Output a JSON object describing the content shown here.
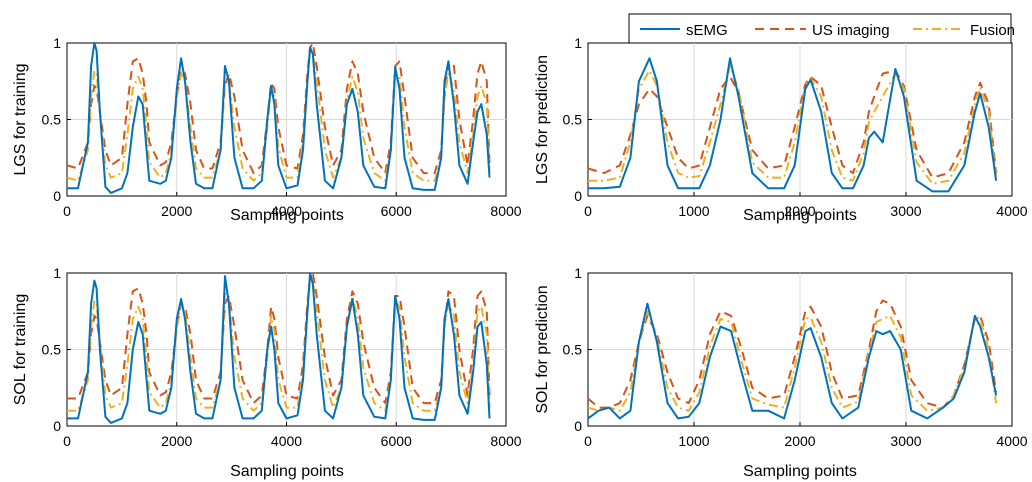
{
  "legend": {
    "entries": [
      {
        "name": "sEMG",
        "color": "#0072BD",
        "dash": "solid"
      },
      {
        "name": "US imaging",
        "color": "#D95319",
        "dash": "dashed"
      },
      {
        "name": "Fusion",
        "color": "#EDB120",
        "dash": "dashdot"
      }
    ],
    "placement": "top-right"
  },
  "chart_data": [
    {
      "type": "line",
      "xlabel": "Sampling points",
      "ylabel": "LGS for training",
      "xlim": [
        0,
        8000
      ],
      "ylim": [
        0,
        1
      ],
      "xticks": [
        0,
        2000,
        4000,
        6000,
        8000
      ],
      "yticks": [
        0,
        0.5,
        1
      ],
      "grid": true,
      "x": [
        0,
        200,
        380,
        440,
        500,
        540,
        600,
        700,
        800,
        1000,
        1100,
        1200,
        1300,
        1380,
        1450,
        1500,
        1700,
        1800,
        1900,
        2000,
        2080,
        2150,
        2250,
        2350,
        2500,
        2650,
        2800,
        2880,
        2950,
        3050,
        3200,
        3400,
        3550,
        3650,
        3720,
        3780,
        3850,
        4000,
        4200,
        4300,
        4380,
        4430,
        4480,
        4550,
        4700,
        4850,
        5000,
        5100,
        5200,
        5300,
        5400,
        5600,
        5800,
        5900,
        5980,
        6060,
        6150,
        6300,
        6500,
        6700,
        6820,
        6880,
        6950,
        7050,
        7150,
        7300,
        7400,
        7480,
        7550,
        7650,
        7700
      ],
      "series": [
        {
          "name": "sEMG",
          "values": [
            0.05,
            0.05,
            0.35,
            0.85,
            1.0,
            0.95,
            0.55,
            0.06,
            0.02,
            0.05,
            0.15,
            0.45,
            0.65,
            0.6,
            0.3,
            0.1,
            0.08,
            0.1,
            0.25,
            0.7,
            0.9,
            0.75,
            0.35,
            0.08,
            0.05,
            0.05,
            0.3,
            0.85,
            0.75,
            0.25,
            0.05,
            0.05,
            0.1,
            0.5,
            0.72,
            0.6,
            0.2,
            0.05,
            0.07,
            0.3,
            0.75,
            0.97,
            0.93,
            0.6,
            0.1,
            0.05,
            0.25,
            0.6,
            0.7,
            0.55,
            0.2,
            0.06,
            0.05,
            0.3,
            0.84,
            0.7,
            0.25,
            0.05,
            0.04,
            0.04,
            0.25,
            0.75,
            0.88,
            0.6,
            0.2,
            0.08,
            0.35,
            0.55,
            0.6,
            0.4,
            0.12
          ]
        },
        {
          "name": "US imaging",
          "values": [
            0.2,
            0.18,
            0.35,
            0.6,
            0.72,
            0.7,
            0.55,
            0.3,
            0.2,
            0.25,
            0.6,
            0.88,
            0.9,
            0.8,
            0.6,
            0.35,
            0.2,
            0.22,
            0.35,
            0.65,
            0.83,
            0.8,
            0.6,
            0.3,
            0.18,
            0.18,
            0.35,
            0.72,
            0.8,
            0.65,
            0.3,
            0.15,
            0.2,
            0.5,
            0.74,
            0.7,
            0.45,
            0.2,
            0.18,
            0.4,
            0.8,
            0.97,
            1.0,
            0.85,
            0.45,
            0.2,
            0.3,
            0.7,
            0.88,
            0.8,
            0.55,
            0.25,
            0.15,
            0.35,
            0.85,
            0.88,
            0.65,
            0.25,
            0.15,
            0.15,
            0.3,
            0.65,
            0.88,
            0.85,
            0.5,
            0.2,
            0.5,
            0.8,
            0.88,
            0.75,
            0.2
          ]
        },
        {
          "name": "Fusion",
          "values": [
            0.12,
            0.1,
            0.3,
            0.65,
            0.82,
            0.8,
            0.55,
            0.2,
            0.12,
            0.15,
            0.4,
            0.7,
            0.78,
            0.7,
            0.45,
            0.22,
            0.12,
            0.15,
            0.28,
            0.65,
            0.8,
            0.75,
            0.45,
            0.18,
            0.12,
            0.12,
            0.3,
            0.75,
            0.75,
            0.45,
            0.18,
            0.1,
            0.15,
            0.45,
            0.7,
            0.65,
            0.32,
            0.12,
            0.12,
            0.35,
            0.75,
            0.95,
            0.95,
            0.75,
            0.3,
            0.12,
            0.25,
            0.62,
            0.78,
            0.68,
            0.38,
            0.15,
            0.1,
            0.3,
            0.8,
            0.78,
            0.45,
            0.15,
            0.1,
            0.1,
            0.25,
            0.65,
            0.8,
            0.7,
            0.35,
            0.15,
            0.4,
            0.65,
            0.72,
            0.6,
            0.15
          ]
        }
      ]
    },
    {
      "type": "line",
      "xlabel": "Sampling points",
      "ylabel": "LGS for prediction",
      "xlim": [
        0,
        4000
      ],
      "ylim": [
        0,
        1
      ],
      "xticks": [
        0,
        1000,
        2000,
        3000,
        4000
      ],
      "yticks": [
        0,
        0.5,
        1
      ],
      "grid": true,
      "x": [
        0,
        150,
        300,
        400,
        480,
        580,
        650,
        750,
        850,
        950,
        1050,
        1150,
        1250,
        1340,
        1420,
        1550,
        1700,
        1850,
        1950,
        2050,
        2100,
        2200,
        2300,
        2400,
        2500,
        2600,
        2650,
        2700,
        2780,
        2900,
        2980,
        3100,
        3250,
        3400,
        3550,
        3650,
        3700,
        3780,
        3850
      ],
      "series": [
        {
          "name": "sEMG",
          "values": [
            0.05,
            0.05,
            0.06,
            0.25,
            0.75,
            0.9,
            0.75,
            0.2,
            0.05,
            0.05,
            0.05,
            0.2,
            0.5,
            0.9,
            0.65,
            0.15,
            0.05,
            0.05,
            0.2,
            0.7,
            0.76,
            0.55,
            0.15,
            0.05,
            0.05,
            0.2,
            0.38,
            0.42,
            0.35,
            0.83,
            0.65,
            0.1,
            0.03,
            0.03,
            0.2,
            0.55,
            0.67,
            0.45,
            0.1
          ]
        },
        {
          "name": "US imaging",
          "values": [
            0.18,
            0.15,
            0.2,
            0.4,
            0.6,
            0.7,
            0.65,
            0.45,
            0.25,
            0.18,
            0.2,
            0.45,
            0.7,
            0.78,
            0.68,
            0.3,
            0.18,
            0.2,
            0.45,
            0.73,
            0.78,
            0.72,
            0.45,
            0.2,
            0.15,
            0.35,
            0.55,
            0.65,
            0.8,
            0.82,
            0.72,
            0.3,
            0.12,
            0.15,
            0.35,
            0.65,
            0.74,
            0.6,
            0.15
          ]
        },
        {
          "name": "Fusion",
          "values": [
            0.1,
            0.1,
            0.12,
            0.35,
            0.7,
            0.82,
            0.72,
            0.35,
            0.15,
            0.12,
            0.13,
            0.35,
            0.6,
            0.85,
            0.7,
            0.22,
            0.12,
            0.12,
            0.35,
            0.72,
            0.77,
            0.65,
            0.3,
            0.12,
            0.1,
            0.28,
            0.48,
            0.55,
            0.65,
            0.8,
            0.7,
            0.22,
            0.08,
            0.1,
            0.28,
            0.6,
            0.71,
            0.55,
            0.12
          ]
        }
      ]
    },
    {
      "type": "line",
      "xlabel": "Sampling points",
      "ylabel": "SOL for training",
      "xlim": [
        0,
        8000
      ],
      "ylim": [
        0,
        1
      ],
      "xticks": [
        0,
        2000,
        4000,
        6000,
        8000
      ],
      "yticks": [
        0,
        0.5,
        1
      ],
      "grid": true,
      "x": [
        0,
        200,
        380,
        440,
        500,
        540,
        600,
        700,
        800,
        1000,
        1100,
        1200,
        1300,
        1380,
        1450,
        1500,
        1700,
        1800,
        1900,
        2000,
        2080,
        2150,
        2250,
        2350,
        2500,
        2650,
        2800,
        2880,
        2950,
        3050,
        3200,
        3400,
        3550,
        3650,
        3720,
        3780,
        3850,
        4000,
        4200,
        4300,
        4380,
        4430,
        4480,
        4550,
        4700,
        4850,
        5000,
        5100,
        5200,
        5300,
        5400,
        5600,
        5800,
        5900,
        5980,
        6060,
        6150,
        6300,
        6500,
        6700,
        6820,
        6880,
        6950,
        7050,
        7150,
        7300,
        7400,
        7480,
        7550,
        7650,
        7700
      ],
      "series": [
        {
          "name": "sEMG",
          "values": [
            0.05,
            0.05,
            0.35,
            0.8,
            0.95,
            0.9,
            0.5,
            0.06,
            0.02,
            0.05,
            0.15,
            0.5,
            0.68,
            0.6,
            0.3,
            0.1,
            0.08,
            0.1,
            0.25,
            0.7,
            0.83,
            0.7,
            0.35,
            0.08,
            0.05,
            0.05,
            0.3,
            0.98,
            0.8,
            0.25,
            0.05,
            0.05,
            0.1,
            0.5,
            0.65,
            0.5,
            0.15,
            0.05,
            0.07,
            0.3,
            0.75,
            1.0,
            0.93,
            0.6,
            0.1,
            0.05,
            0.25,
            0.65,
            0.83,
            0.6,
            0.2,
            0.06,
            0.05,
            0.3,
            0.85,
            0.7,
            0.25,
            0.05,
            0.04,
            0.04,
            0.25,
            0.7,
            0.83,
            0.6,
            0.2,
            0.08,
            0.35,
            0.65,
            0.68,
            0.4,
            0.05
          ]
        },
        {
          "name": "US imaging",
          "values": [
            0.18,
            0.18,
            0.35,
            0.6,
            0.72,
            0.7,
            0.55,
            0.3,
            0.2,
            0.25,
            0.6,
            0.88,
            0.9,
            0.8,
            0.6,
            0.35,
            0.2,
            0.22,
            0.35,
            0.65,
            0.8,
            0.78,
            0.6,
            0.3,
            0.18,
            0.18,
            0.35,
            0.8,
            0.85,
            0.65,
            0.3,
            0.15,
            0.2,
            0.5,
            0.78,
            0.7,
            0.45,
            0.2,
            0.18,
            0.4,
            0.8,
            0.97,
            1.0,
            0.85,
            0.45,
            0.2,
            0.3,
            0.7,
            0.88,
            0.8,
            0.55,
            0.25,
            0.15,
            0.35,
            0.85,
            0.85,
            0.65,
            0.25,
            0.15,
            0.15,
            0.3,
            0.65,
            0.88,
            0.85,
            0.5,
            0.2,
            0.5,
            0.85,
            0.88,
            0.75,
            0.2
          ]
        },
        {
          "name": "Fusion",
          "values": [
            0.1,
            0.1,
            0.3,
            0.65,
            0.82,
            0.8,
            0.55,
            0.2,
            0.12,
            0.15,
            0.4,
            0.7,
            0.78,
            0.7,
            0.45,
            0.22,
            0.12,
            0.15,
            0.28,
            0.65,
            0.8,
            0.75,
            0.45,
            0.18,
            0.12,
            0.12,
            0.3,
            0.88,
            0.82,
            0.45,
            0.18,
            0.1,
            0.15,
            0.45,
            0.72,
            0.62,
            0.3,
            0.12,
            0.12,
            0.35,
            0.75,
            0.95,
            0.95,
            0.75,
            0.3,
            0.12,
            0.25,
            0.65,
            0.85,
            0.7,
            0.38,
            0.15,
            0.1,
            0.3,
            0.82,
            0.78,
            0.45,
            0.15,
            0.1,
            0.1,
            0.25,
            0.65,
            0.8,
            0.72,
            0.35,
            0.15,
            0.4,
            0.75,
            0.78,
            0.6,
            0.12
          ]
        }
      ]
    },
    {
      "type": "line",
      "xlabel": "Sampling points",
      "ylabel": "SOL for prediction",
      "xlim": [
        0,
        4000
      ],
      "ylim": [
        0,
        1
      ],
      "xticks": [
        0,
        1000,
        2000,
        3000,
        4000
      ],
      "yticks": [
        0,
        0.5,
        1
      ],
      "grid": true,
      "x": [
        0,
        100,
        200,
        300,
        400,
        480,
        560,
        650,
        750,
        850,
        950,
        1050,
        1150,
        1250,
        1350,
        1450,
        1550,
        1700,
        1850,
        1950,
        2050,
        2100,
        2200,
        2300,
        2400,
        2550,
        2650,
        2720,
        2780,
        2850,
        2950,
        3050,
        3200,
        3350,
        3450,
        3550,
        3650,
        3700,
        3780,
        3850
      ],
      "series": [
        {
          "name": "sEMG",
          "values": [
            0.05,
            0.1,
            0.12,
            0.05,
            0.1,
            0.55,
            0.8,
            0.55,
            0.15,
            0.05,
            0.06,
            0.15,
            0.45,
            0.65,
            0.62,
            0.35,
            0.1,
            0.1,
            0.05,
            0.3,
            0.62,
            0.64,
            0.45,
            0.15,
            0.05,
            0.12,
            0.45,
            0.62,
            0.6,
            0.62,
            0.5,
            0.1,
            0.05,
            0.12,
            0.18,
            0.35,
            0.72,
            0.65,
            0.45,
            0.2
          ]
        },
        {
          "name": "US imaging",
          "values": [
            0.18,
            0.12,
            0.12,
            0.15,
            0.3,
            0.55,
            0.72,
            0.6,
            0.35,
            0.18,
            0.15,
            0.3,
            0.6,
            0.75,
            0.72,
            0.5,
            0.25,
            0.18,
            0.2,
            0.45,
            0.75,
            0.78,
            0.65,
            0.35,
            0.18,
            0.2,
            0.5,
            0.75,
            0.82,
            0.8,
            0.65,
            0.3,
            0.15,
            0.12,
            0.2,
            0.4,
            0.7,
            0.72,
            0.55,
            0.22
          ]
        },
        {
          "name": "Fusion",
          "values": [
            0.12,
            0.1,
            0.12,
            0.1,
            0.22,
            0.55,
            0.75,
            0.58,
            0.25,
            0.12,
            0.1,
            0.22,
            0.52,
            0.7,
            0.68,
            0.42,
            0.18,
            0.14,
            0.12,
            0.38,
            0.7,
            0.71,
            0.55,
            0.25,
            0.12,
            0.16,
            0.48,
            0.68,
            0.7,
            0.72,
            0.58,
            0.2,
            0.1,
            0.12,
            0.2,
            0.38,
            0.72,
            0.7,
            0.5,
            0.15
          ]
        }
      ]
    }
  ]
}
